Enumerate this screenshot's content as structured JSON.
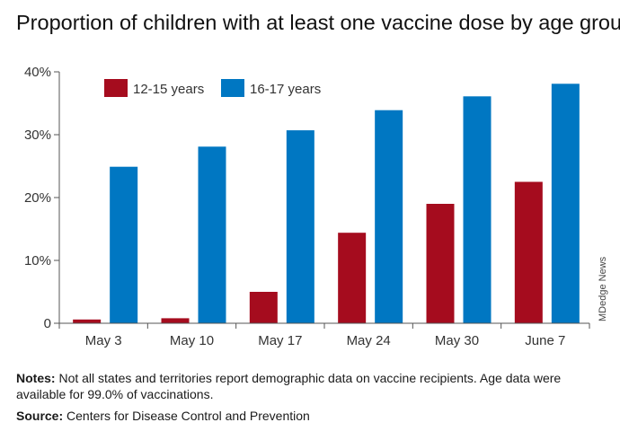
{
  "chart_data": {
    "type": "bar",
    "title": "Proportion of children with at least one vaccine dose by age group",
    "categories": [
      "May 3",
      "May 10",
      "May 17",
      "May 24",
      "May 30",
      "June 7"
    ],
    "series": [
      {
        "name": "12-15 years",
        "color": "#a50c1e",
        "values": [
          0.6,
          0.8,
          5.0,
          14.4,
          19.0,
          22.5
        ]
      },
      {
        "name": "16-17 years",
        "color": "#0077c2",
        "values": [
          24.9,
          28.1,
          30.7,
          33.9,
          36.1,
          38.1
        ]
      }
    ],
    "yticks": [
      0,
      10,
      20,
      30,
      40
    ],
    "ytick_labels": [
      "0",
      "10%",
      "20%",
      "30%",
      "40%"
    ],
    "ylim": [
      0,
      40
    ],
    "xlabel": "",
    "ylabel": "",
    "legend_position": "top-left",
    "grid": false
  },
  "credit": "MDedge News",
  "notes": {
    "label": "Notes:",
    "text": " Not all states and territories report demographic data on vaccine recipients. Age data were available for 99.0% of vaccinations."
  },
  "source": {
    "label": "Source:",
    "text": " Centers for Disease Control and Prevention"
  }
}
